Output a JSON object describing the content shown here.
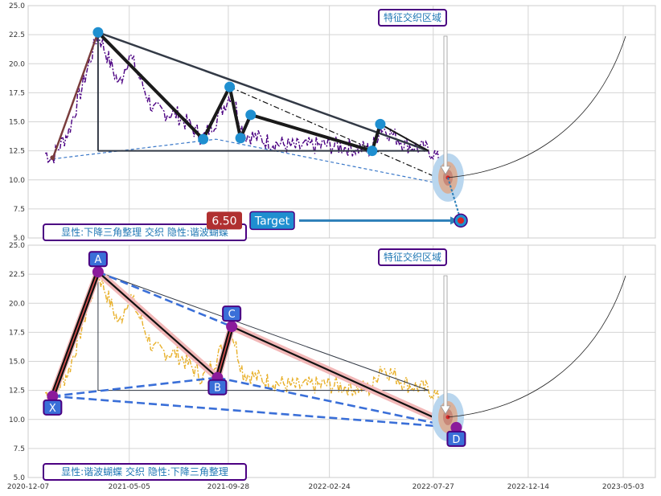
{
  "chart_data": [
    {
      "type": "line",
      "panel": "top",
      "ylim": [
        5.0,
        25.0
      ],
      "yticks": [
        "5.0",
        "7.5",
        "10.0",
        "12.5",
        "15.0",
        "17.5",
        "20.0",
        "22.5",
        "25.0"
      ],
      "grid": true,
      "series_color": "#4b0082",
      "pattern_color": "#333a46",
      "triangle": {
        "peak": [
          "2021-03-20",
          22.7
        ],
        "apex": [
          "2022-07-20",
          12.5
        ],
        "base_start": [
          "2021-03-20",
          12.5
        ],
        "base_end": [
          "2022-07-20",
          12.5
        ],
        "pivots": [
          [
            "2021-03-20",
            22.7
          ],
          [
            "2021-08-22",
            13.5
          ],
          [
            "2021-09-30",
            18.0
          ],
          [
            "2021-10-16",
            13.6
          ],
          [
            "2021-10-31",
            15.6
          ],
          [
            "2022-04-28",
            12.5
          ],
          [
            "2022-05-10",
            14.8
          ]
        ]
      },
      "target_value": "6.50",
      "target_label": "Target",
      "corner_label": "显性:下降三角整理 交织 隐性:谐波蝴蝶",
      "zone_label": "特征交织区域"
    },
    {
      "type": "line",
      "panel": "bottom",
      "ylim": [
        5.0,
        25.0
      ],
      "yticks": [
        "5.0",
        "7.5",
        "10.0",
        "12.5",
        "15.0",
        "17.5",
        "20.0",
        "22.5",
        "25.0"
      ],
      "xticks": [
        "2020-12-07",
        "2021-05-05",
        "2021-09-28",
        "2022-02-24",
        "2022-07-27",
        "2022-12-14",
        "2023-05-03"
      ],
      "grid": true,
      "series_color": "#e8b02a",
      "harmonic_points": [
        {
          "label": "X",
          "date": "2021-01-12",
          "value": 12.0
        },
        {
          "label": "A",
          "date": "2021-03-20",
          "value": 22.7
        },
        {
          "label": "B",
          "date": "2021-09-12",
          "value": 13.6
        },
        {
          "label": "C",
          "date": "2021-10-03",
          "value": 18.0
        },
        {
          "label": "D",
          "date": "2022-08-30",
          "value": 9.3
        }
      ],
      "corner_label": "显性:谐波蝴蝶 交织 隐性:下降三角整理",
      "zone_label": "特征交织区域"
    }
  ]
}
